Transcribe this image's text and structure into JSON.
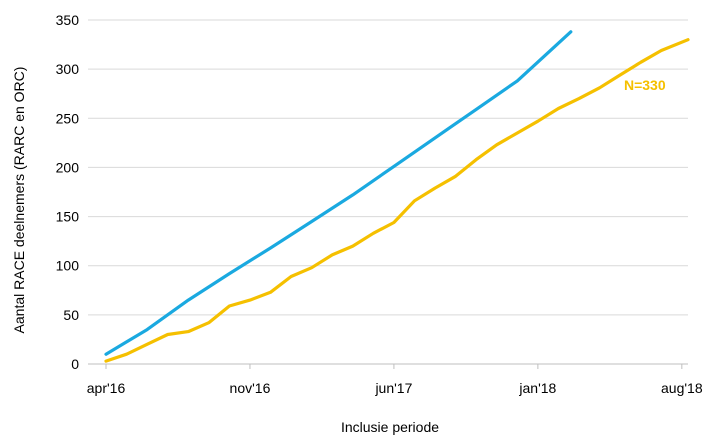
{
  "chart_data": {
    "type": "line",
    "title": "",
    "xlabel": "Inclusie periode",
    "ylabel": "Aantal RACE deelnemers (RARC en ORC)",
    "ylim": [
      0,
      350
    ],
    "yticks": [
      0,
      50,
      100,
      150,
      200,
      250,
      300,
      350
    ],
    "xlim": [
      0,
      28.3
    ],
    "xticks": [
      {
        "x": 0,
        "label": "apr'16"
      },
      {
        "x": 7,
        "label": "nov'16"
      },
      {
        "x": 14,
        "label": "jun'17"
      },
      {
        "x": 21,
        "label": "jan'18"
      },
      {
        "x": 28,
        "label": "aug'18"
      }
    ],
    "grid": true,
    "legend": "none",
    "annotations": [
      {
        "text": "N=330",
        "x": 26.2,
        "y": 284,
        "color": "#f5c000"
      }
    ],
    "series": [
      {
        "color": "#1aa9e0",
        "x": [
          0,
          2,
          4,
          6,
          8,
          10,
          12,
          14,
          16,
          18,
          20,
          22.6
        ],
        "y": [
          10,
          35,
          65,
          92,
          118,
          145,
          172,
          201,
          230,
          259,
          288,
          338
        ]
      },
      {
        "color": "#f5c000",
        "x": [
          0,
          1,
          2,
          3,
          4,
          5,
          6,
          7,
          8,
          9,
          10,
          11,
          12,
          13,
          14,
          15,
          16,
          17,
          18,
          19,
          20,
          21,
          22,
          23,
          24,
          25,
          26,
          27,
          28.3
        ],
        "y": [
          3,
          10,
          20,
          30,
          33,
          42,
          59,
          65,
          73,
          89,
          98,
          111,
          120,
          133,
          144,
          166,
          179,
          191,
          208,
          223,
          235,
          247,
          260,
          270,
          281,
          294,
          307,
          319,
          330
        ]
      }
    ]
  }
}
